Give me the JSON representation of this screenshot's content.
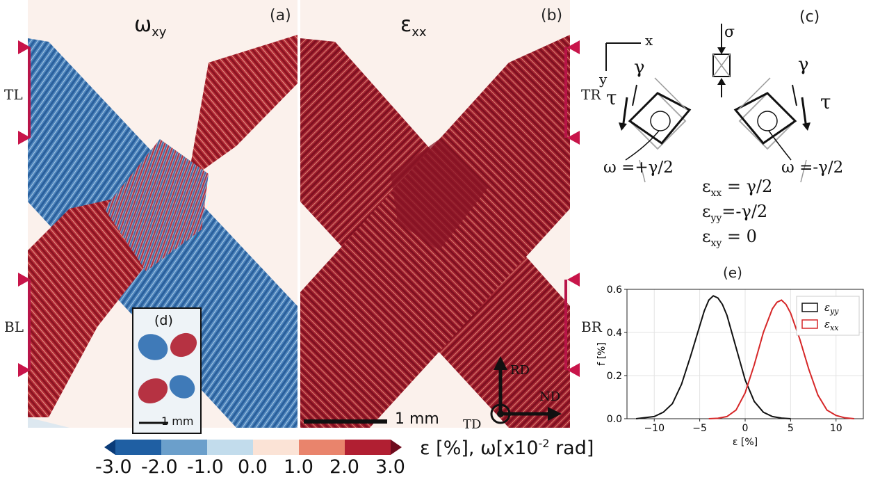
{
  "panels": {
    "a": {
      "label": "(a)",
      "symbol": "ω",
      "subscript": "xy"
    },
    "b": {
      "label": "(b)",
      "symbol": "ε",
      "subscript": "xx"
    },
    "c": {
      "label": "(c)"
    },
    "d": {
      "label": "(d)",
      "scale": "1 mm"
    },
    "e": {
      "label": "(e)"
    }
  },
  "region_labels": {
    "tl": "TL",
    "bl": "BL",
    "tr": "TR",
    "br": "BR"
  },
  "scale_bar": "1 mm",
  "axes_glyph": {
    "rd": "RD",
    "nd": "ND",
    "td": "TD"
  },
  "schematic": {
    "x": "x",
    "y": "y",
    "sigma": "σ",
    "gamma": "γ",
    "tau": "τ",
    "omega_left": "ω =+γ/2",
    "omega_right": "ω =-γ/2",
    "eq1": {
      "sym": "ε",
      "sub": "xx",
      "rhs": " = γ/2"
    },
    "eq2": {
      "sym": "ε",
      "sub": "yy",
      "rhs": "=-γ/2"
    },
    "eq3": {
      "sym": "ε",
      "sub": "xy",
      "rhs": " = 0"
    }
  },
  "colorbar": {
    "ticks": [
      "-3.0",
      "-2.0",
      "-1.0",
      "0.0",
      "1.0",
      "2.0",
      "3.0"
    ],
    "colors": [
      "#1f5fa3",
      "#6b9fcb",
      "#c2dcec",
      "#fbe3d6",
      "#e9846c",
      "#b11f32"
    ],
    "under_color": "#0a3b78",
    "over_color": "#6e0b1d",
    "label_eps": "ε [%], ω[x10",
    "label_exp": "-2",
    "label_unit": " rad]"
  },
  "colors": {
    "blue": "#2f6fae",
    "red": "#a51d2d",
    "background": "#fbf1ec",
    "marker": "#c8154a"
  },
  "chart_data": {
    "type": "line",
    "xlabel": "ε [%]",
    "ylabel": "f [%]",
    "xlim": [
      -13,
      13
    ],
    "ylim": [
      0,
      0.6
    ],
    "xticks": [
      "−10",
      "−5",
      "0",
      "5",
      "10"
    ],
    "yticks": [
      "0.0",
      "0.2",
      "0.4",
      "0.6"
    ],
    "grid": true,
    "legend": "top-right",
    "series": [
      {
        "name": "ε_yy",
        "label_sym": "ε",
        "label_sub": "yy",
        "color": "#111111",
        "x": [
          -12,
          -10,
          -9,
          -8,
          -7,
          -6,
          -5,
          -4.5,
          -4,
          -3.5,
          -3,
          -2.5,
          -2,
          -1,
          0,
          1,
          2,
          3,
          4,
          5
        ],
        "y": [
          0.0,
          0.01,
          0.03,
          0.07,
          0.16,
          0.29,
          0.43,
          0.5,
          0.55,
          0.57,
          0.56,
          0.53,
          0.48,
          0.33,
          0.18,
          0.08,
          0.03,
          0.01,
          0.003,
          0.0
        ]
      },
      {
        "name": "ε_xx",
        "label_sym": "ε",
        "label_sub": "xx",
        "color": "#d62728",
        "x": [
          -4,
          -3,
          -2,
          -1,
          0,
          1,
          2,
          3,
          3.5,
          4,
          4.5,
          5,
          6,
          7,
          8,
          9,
          10,
          11,
          12
        ],
        "y": [
          0.0,
          0.002,
          0.01,
          0.04,
          0.12,
          0.25,
          0.4,
          0.51,
          0.54,
          0.55,
          0.53,
          0.49,
          0.37,
          0.23,
          0.11,
          0.04,
          0.015,
          0.004,
          0.0
        ]
      }
    ]
  }
}
